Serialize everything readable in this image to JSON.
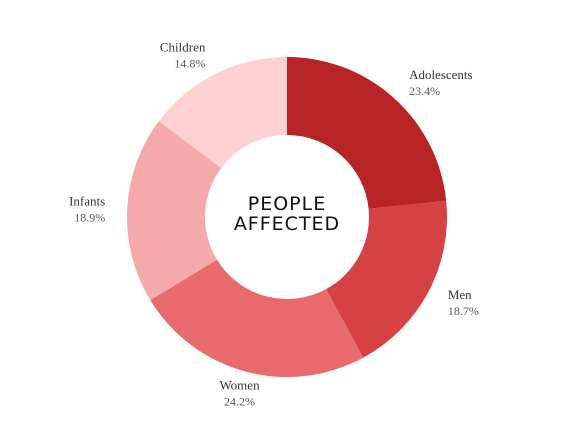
{
  "chart_data": {
    "type": "pie",
    "style": "donut",
    "center_label": [
      "PEOPLE",
      "AFFECTED"
    ],
    "categories": [
      "Adolescents",
      "Men",
      "Women",
      "Infants",
      "Children"
    ],
    "values": [
      23.4,
      18.7,
      24.2,
      18.9,
      14.8
    ],
    "value_labels": [
      "23.4%",
      "18.7%",
      "24.2%",
      "18.9%",
      "14.8%"
    ],
    "colors": [
      "#b82326",
      "#d64144",
      "#e96a6c",
      "#f6a9ab",
      "#fdd0d1"
    ],
    "start_angle_deg": 0,
    "direction": "clockwise",
    "legend": "none",
    "grid": false
  }
}
